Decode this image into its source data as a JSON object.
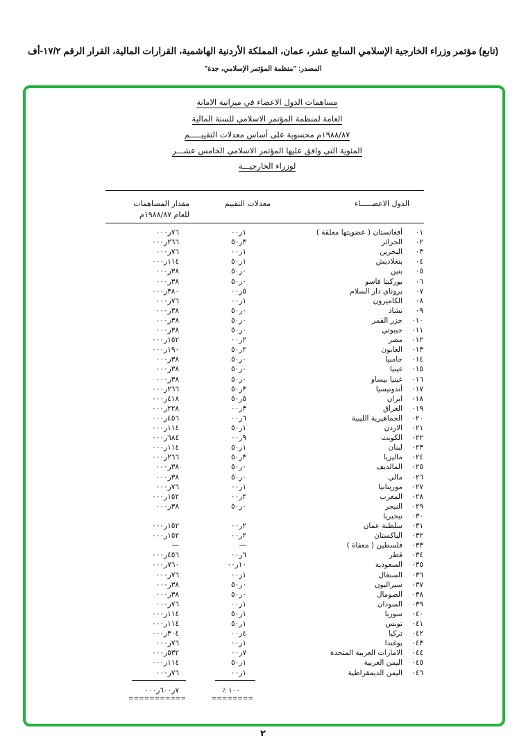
{
  "header": {
    "title": "(تابع) مؤتمر وزراء الخارجية الإسلامي السابع عشر، عمان، المملكة الأردنية الهاشمية، القرارات المالية، القرار الرقم ١٧/٢-أف",
    "source": "المصدر: \"منظمة المؤتمر الإسلامي، جدة\""
  },
  "document": {
    "title_lines": [
      "مساهمات الدول الاعضاء في ميزانية الامانة",
      "العامة لمنظمة المؤتمر الاسلامي للسنة المالية",
      "١٩٨٨/٨٧م محسوبة على أساس معدلات التقييـــــم",
      "المئوية التي وافق عليها المؤتمر الاسلامي الخامس عشـــر",
      "لوزراء الخارجيـــة"
    ],
    "columns": {
      "members": "الدول الاعضـــــاء",
      "rates": "معدلات التقييم",
      "amount_line1": "مقدار المساهمات",
      "amount_line2": "للعام ١٩٨٨/٨٧م"
    },
    "rows": [
      {
        "no": "٠١",
        "name": "أفغانستان ( عضويتها معلقة )",
        "rate": "١ر٠٠",
        "amount": "٧٦ر٠٠٠"
      },
      {
        "no": "٠٢",
        "name": "الجزائر",
        "rate": "٣ر٥٠",
        "amount": "٢٦٦ر٠٠٠"
      },
      {
        "no": "٠٣",
        "name": "البحرين",
        "rate": "١ر٠٠",
        "amount": "٧٦ر٠٠٠"
      },
      {
        "no": "٠٤",
        "name": "بنغلاديش",
        "rate": "١ر٥٠",
        "amount": "١١٤ر٠٠٠"
      },
      {
        "no": "٠٥",
        "name": "بنين",
        "rate": "٠ر٥٠",
        "amount": "٣٨ر٠٠٠"
      },
      {
        "no": "٠٦",
        "name": "بوركينا فاسو",
        "rate": "٠ر٥٠",
        "amount": "٣٨ر٠٠٠"
      },
      {
        "no": "٠٧",
        "name": "بروناي دار السلام",
        "rate": "٥ر٠٠",
        "amount": "٣٨٠ر٠٠٠"
      },
      {
        "no": "٠٨",
        "name": "الكاميرون",
        "rate": "١ر٠٠",
        "amount": "٧٦ر٠٠٠"
      },
      {
        "no": "٠٩",
        "name": "تشاد",
        "rate": "٠ر٥٠",
        "amount": "٣٨ر٠٠٠"
      },
      {
        "no": "٠١٠",
        "name": "جزر القمر",
        "rate": "٠ر٥٠",
        "amount": "٣٨ر٠٠٠"
      },
      {
        "no": "٠١١",
        "name": "جيبوتي",
        "rate": "٠ر٥٠",
        "amount": "٣٨ر٠٠٠"
      },
      {
        "no": "٠١٢",
        "name": "مصر",
        "rate": "٢ر٠٠",
        "amount": "١٥٢ر٠٠٠"
      },
      {
        "no": "٠١٣",
        "name": "الغابون",
        "rate": "٢ر٥٠",
        "amount": "١٩٠ر٠٠٠"
      },
      {
        "no": "٠١٤",
        "name": "جامبيا",
        "rate": "٠ر٥٠",
        "amount": "٣٨ر٠٠٠"
      },
      {
        "no": "٠١٥",
        "name": "غينيا",
        "rate": "٠ر٥٠",
        "amount": "٣٨ر٠٠٠"
      },
      {
        "no": "٠١٦",
        "name": "غينيا بيساو",
        "rate": "٠ر٥٠",
        "amount": "٣٨ر٠٠٠"
      },
      {
        "no": "٠١٧",
        "name": "أندونيسيا",
        "rate": "٣ر٥٠",
        "amount": "٢٦٦ر٠٠٠"
      },
      {
        "no": "٠١٨",
        "name": "ايران",
        "rate": "٥ر٥٠",
        "amount": "٤١٨ر٠٠٠"
      },
      {
        "no": "٠١٩",
        "name": "العراق",
        "rate": "٣ر٠٠",
        "amount": "٢٢٨ر٠٠٠"
      },
      {
        "no": "٠٢٠",
        "name": "الجماهيرية الليبية",
        "rate": "٦ر٠٠",
        "amount": "٤٥٦ر٠٠٠"
      },
      {
        "no": "٠٢١",
        "name": "الاردن",
        "rate": "١ر٥٠",
        "amount": "١١٤ر٠٠٠"
      },
      {
        "no": "٠٢٢",
        "name": "الكويت",
        "rate": "٩ر٠٠",
        "amount": "٦٨٤ر٠٠٠"
      },
      {
        "no": "٠٢٣",
        "name": "لبنان",
        "rate": "١ر٥٠",
        "amount": "١١٤ر٠٠٠"
      },
      {
        "no": "٠٢٤",
        "name": "ماليزيا",
        "rate": "٣ر٥٠",
        "amount": "٢٦٦ر٠٠٠"
      },
      {
        "no": "٠٢٥",
        "name": "المالديف",
        "rate": "٠ر٥٠",
        "amount": "٣٨ر٠٠٠"
      },
      {
        "no": "٠٢٦",
        "name": "مالي",
        "rate": "٠ر٥٠",
        "amount": "٣٨ر٠٠٠"
      },
      {
        "no": "٠٢٧",
        "name": "موريتانيا",
        "rate": "١ر٠٠",
        "amount": "٧٦ر٠٠٠"
      },
      {
        "no": "٠٢٨",
        "name": "المغرب",
        "rate": "٢ر٠٠",
        "amount": "١٥٢ر٠٠٠"
      },
      {
        "no": "٠٢٩",
        "name": "النيجر",
        "rate": "٠ر٥٠",
        "amount": "٣٨ر٠٠٠"
      },
      {
        "no": "٠٣٠",
        "name": "نيجيريا",
        "rate": "",
        "amount": ""
      },
      {
        "no": "٠٣١",
        "name": "سلطنة عمان",
        "rate": "٢ر٠٠",
        "amount": "١٥٢ر٠٠٠"
      },
      {
        "no": "٠٣٢",
        "name": "الباكستان",
        "rate": "٢ر٠٠",
        "amount": "١٥٢ر٠٠٠"
      },
      {
        "no": "٠٣٣",
        "name": "فلسطين ( معفاة )",
        "rate": "—",
        "amount": "—"
      },
      {
        "no": "٠٣٤",
        "name": "قطر",
        "rate": "٦ر٠٠",
        "amount": "٤٥٦ر٠٠٠"
      },
      {
        "no": "٠٣٥",
        "name": "السعودية",
        "rate": "١٠ر٠٠",
        "amount": "٧٦٠ر٠٠٠"
      },
      {
        "no": "٠٣٦",
        "name": "السنغال",
        "rate": "١ر٠٠",
        "amount": "٧٦ر٠٠٠"
      },
      {
        "no": "٠٣٧",
        "name": "سيراليون",
        "rate": "٠ر٥٠",
        "amount": "٣٨ر٠٠٠"
      },
      {
        "no": "٠٣٨",
        "name": "الصومال",
        "rate": "٠ر٥٠",
        "amount": "٣٨ر٠٠٠"
      },
      {
        "no": "٠٣٩",
        "name": "السودان",
        "rate": "١ر٠٠",
        "amount": "٧٦ر٠٠٠"
      },
      {
        "no": "٠٤٠",
        "name": "سوريا",
        "rate": "١ر٥٠",
        "amount": "١١٤ر٠٠٠"
      },
      {
        "no": "٠٤١",
        "name": "تونس",
        "rate": "١ر٥٠",
        "amount": "١١٤ر٠٠٠"
      },
      {
        "no": "٠٤٢",
        "name": "تركيا",
        "rate": "٤ر٠٠",
        "amount": "٣٠٤ر٠٠٠"
      },
      {
        "no": "٠٤٣",
        "name": "يوغندا",
        "rate": "١ر٠٠",
        "amount": "٧٦ر٠٠٠"
      },
      {
        "no": "٠٤٤",
        "name": "الامارات العربية المتحدة",
        "rate": "٧ر٠٠",
        "amount": "٥٣٢ر٠٠٠"
      },
      {
        "no": "٠٤٥",
        "name": "اليمن العربية",
        "rate": "١ر٥٠",
        "amount": "١١٤ر٠٠٠"
      },
      {
        "no": "٠٤٦",
        "name": "اليمن الديمقراطية",
        "rate": "١ر٠٠",
        "amount": "٧٦ر٠٠٠"
      }
    ],
    "totals": {
      "rate": "٪ ١٠٠",
      "amount": "٧ر٦٠٠ر٠٠٠",
      "rate_double": "========",
      "amount_double": "==========="
    }
  },
  "page_number": "٢",
  "colors": {
    "frame": "#22b33c"
  }
}
